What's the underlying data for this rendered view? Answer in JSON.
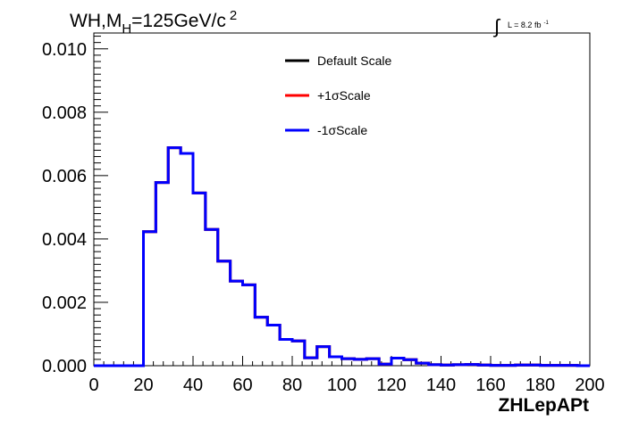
{
  "chart_data": {
    "type": "line",
    "title_parts": {
      "main": "WH,M",
      "sub": "H",
      "value": "=125GeV/c",
      "sup": "2"
    },
    "lumi_label": {
      "integral": "∫",
      "text": "L = 8.2 fb",
      "sup": "-1"
    },
    "xlabel": "ZHLepAPt",
    "ylabel": "",
    "xlim": [
      0,
      200
    ],
    "ylim": [
      0,
      0.0105
    ],
    "x_ticks": [
      0,
      20,
      40,
      60,
      80,
      100,
      120,
      140,
      160,
      180,
      200
    ],
    "x_tick_labels": [
      "0",
      "20",
      "40",
      "60",
      "80",
      "100",
      "120",
      "140",
      "160",
      "180",
      "200"
    ],
    "y_ticks": [
      0,
      0.002,
      0.004,
      0.006,
      0.008,
      0.01
    ],
    "y_tick_labels": [
      "0.000",
      "0.002",
      "0.004",
      "0.006",
      "0.008",
      "0.010"
    ],
    "grid": false,
    "legend_position": "top-center",
    "bin_edges": [
      0,
      5,
      10,
      15,
      20,
      25,
      30,
      35,
      40,
      45,
      50,
      55,
      60,
      65,
      70,
      75,
      80,
      85,
      90,
      95,
      100,
      105,
      110,
      115,
      120,
      125,
      130,
      135,
      140,
      145,
      150,
      155,
      160,
      165,
      170,
      175,
      180,
      185,
      190,
      195,
      200
    ],
    "series": [
      {
        "name": "Default Scale",
        "color": "#000000",
        "values": [
          0,
          0,
          0,
          0,
          0.00423,
          0.00578,
          0.00688,
          0.0067,
          0.00545,
          0.0043,
          0.0033,
          0.00267,
          0.00255,
          0.00153,
          0.00128,
          0.00083,
          0.00078,
          0.00025,
          0.0006,
          0.00028,
          0.00022,
          0.0002,
          0.00022,
          5e-05,
          0.00024,
          0.00019,
          8e-05,
          3e-05,
          2e-05,
          3e-05,
          4e-05,
          2e-05,
          1e-05,
          1e-05,
          2e-05,
          2e-05,
          1e-05,
          1e-05,
          1e-05,
          0
        ]
      },
      {
        "name": "+1σScale",
        "color": "#ff0000",
        "values": [
          0,
          0,
          0,
          0,
          0.00423,
          0.00578,
          0.00688,
          0.0067,
          0.00545,
          0.0043,
          0.0033,
          0.00267,
          0.00255,
          0.00153,
          0.00128,
          0.00083,
          0.00078,
          0.00025,
          0.0006,
          0.00028,
          0.00022,
          0.0002,
          0.00022,
          5e-05,
          0.00024,
          0.00019,
          8e-05,
          3e-05,
          2e-05,
          3e-05,
          4e-05,
          2e-05,
          1e-05,
          1e-05,
          2e-05,
          2e-05,
          1e-05,
          1e-05,
          1e-05,
          0
        ]
      },
      {
        "name": "-1σScale",
        "color": "#0000ff",
        "values": [
          0,
          0,
          0,
          0,
          0.00423,
          0.00578,
          0.00688,
          0.0067,
          0.00545,
          0.0043,
          0.0033,
          0.00267,
          0.00255,
          0.00153,
          0.00128,
          0.00083,
          0.00078,
          0.00025,
          0.0006,
          0.00028,
          0.00022,
          0.0002,
          0.00022,
          5e-05,
          0.00024,
          0.00019,
          8e-05,
          3e-05,
          2e-05,
          3e-05,
          4e-05,
          2e-05,
          1e-05,
          1e-05,
          2e-05,
          2e-05,
          1e-05,
          1e-05,
          1e-05,
          0
        ]
      }
    ]
  }
}
